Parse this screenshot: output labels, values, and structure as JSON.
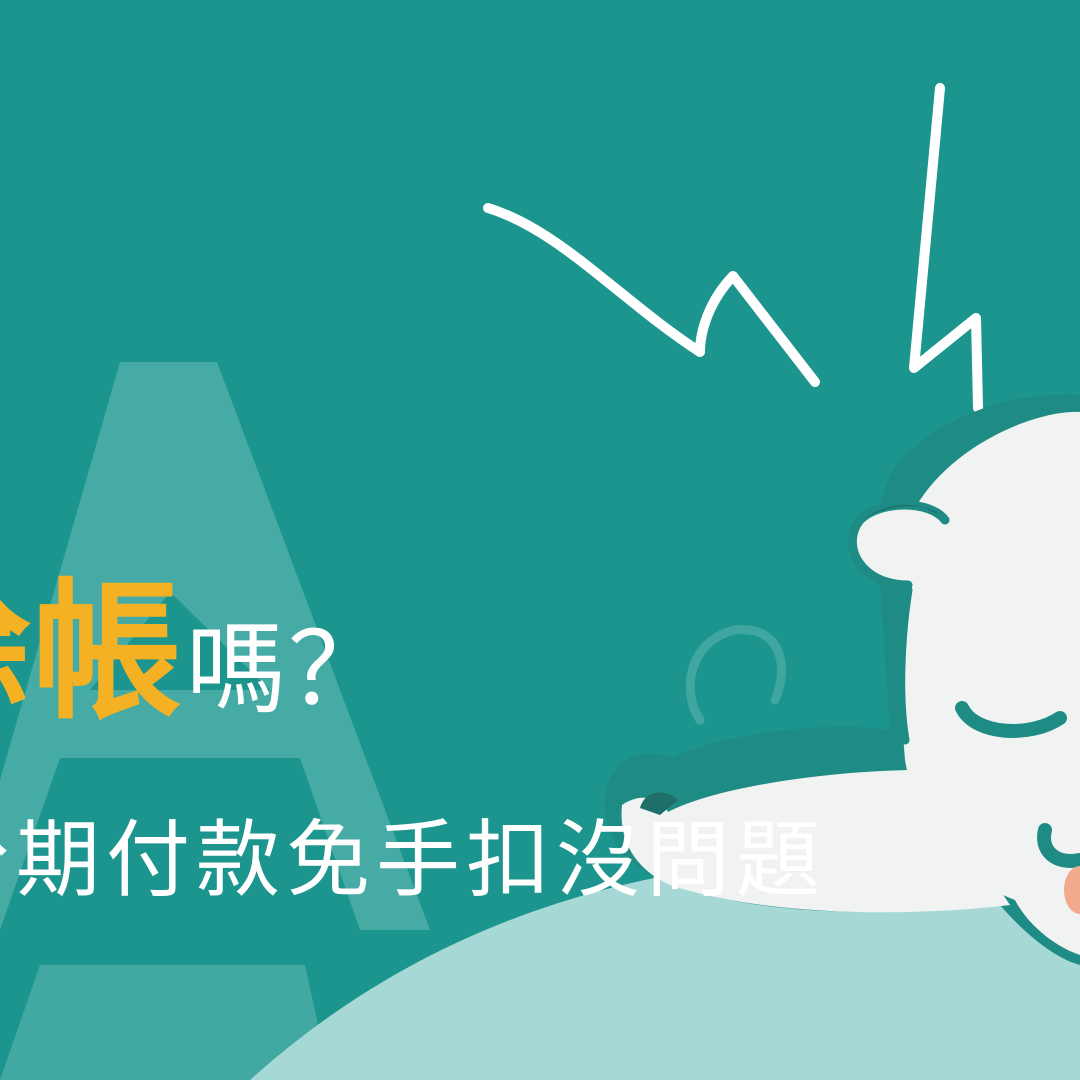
{
  "graphic": {
    "headline_highlight": "賒帳",
    "headline_suffix": "嗎？",
    "subline": "分期付款免手扣沒問題",
    "colors": {
      "background": "#1B958D",
      "watermark": "#4EAFA8",
      "highlight_text": "#F5B124",
      "body_text": "#FFFFFF",
      "pillow": "#A6D8D6",
      "bear_fur": "#F0F3F2",
      "bear_outline": "#1E8C84",
      "bear_blush": "#F2A98E"
    },
    "icons": {
      "watermark": "letter-a-watermark",
      "alarm": "lightning-bolt-icon",
      "character": "sleeping-bear-illustration"
    }
  }
}
